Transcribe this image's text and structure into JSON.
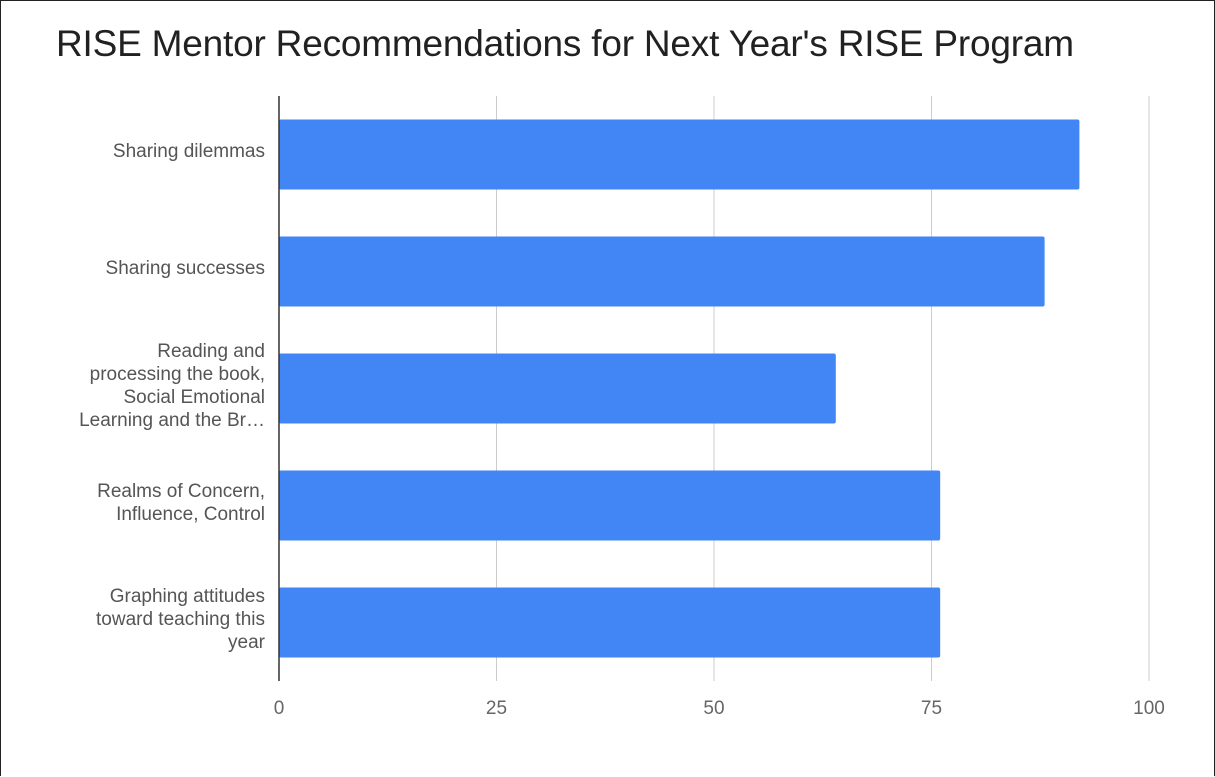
{
  "chart_data": {
    "type": "bar",
    "orientation": "horizontal",
    "title": "RISE Mentor Recommendations for Next Year's RISE Program",
    "xlabel": "",
    "ylabel": "",
    "categories": [
      "Sharing dilemmas",
      "Sharing successes",
      "Reading and processing the book, Social Emotional Learning and the Br…",
      "Realms of Concern, Influence, Control",
      "Graphing attitudes toward teaching this year"
    ],
    "category_display_lines": [
      [
        "Sharing dilemmas"
      ],
      [
        "Sharing successes"
      ],
      [
        "Reading and",
        "processing the book,",
        "Social Emotional",
        "Learning and the Br…"
      ],
      [
        "Realms of Concern,",
        "Influence, Control"
      ],
      [
        "Graphing attitudes",
        "toward teaching this",
        "year"
      ]
    ],
    "values": [
      92,
      88,
      64,
      76,
      76
    ],
    "xlim": [
      0,
      100
    ],
    "xticks": [
      "0",
      "25",
      "50",
      "75",
      "100"
    ],
    "grid": true,
    "legend": "none",
    "colors": {
      "bar": "#4285f4",
      "grid": "#cccccc",
      "axis": "#333333"
    }
  }
}
